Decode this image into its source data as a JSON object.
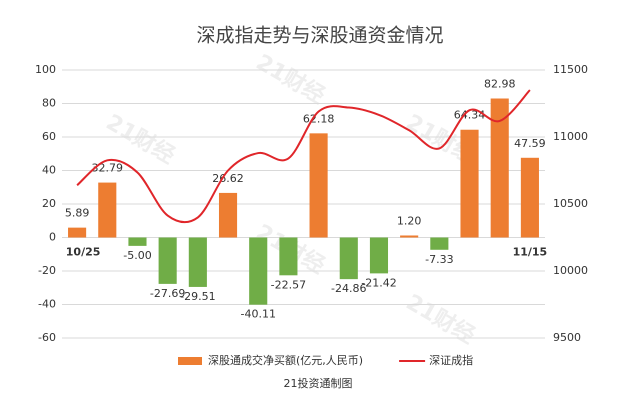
{
  "chart_data": {
    "type": "bar",
    "title": "深成指走势与深股通资金情况",
    "footer": "21投资通制图",
    "watermark": "21财经",
    "categories": [
      "10/25",
      null,
      null,
      null,
      null,
      null,
      null,
      null,
      null,
      null,
      null,
      null,
      null,
      null,
      null,
      "11/15"
    ],
    "series": [
      {
        "name": "深股通成交净买额(亿元,人民币)",
        "type": "bar",
        "color": "#ed7d31",
        "negative_color": "#70ad47",
        "values": [
          5.89,
          32.79,
          -5.0,
          -27.69,
          -29.51,
          26.62,
          -40.11,
          -22.57,
          62.18,
          -24.86,
          -21.42,
          1.2,
          -7.33,
          64.34,
          82.98,
          47.59
        ],
        "value_labels": [
          "5.89",
          "32.79",
          "-5.00",
          "-27.69",
          "-29.51",
          "26.62",
          "-40.11",
          "-22.57",
          "62.18",
          "-24.86",
          "-21.42",
          "1.20",
          "-7.33",
          "64.34",
          "82.98",
          "47.59"
        ]
      },
      {
        "name": "深证成指",
        "type": "line",
        "axis": "y2",
        "color": "#e0262a",
        "values": [
          10640,
          10826,
          10735,
          10414,
          10400,
          10750,
          10880,
          10840,
          11190,
          11220,
          11165,
          11050,
          10915,
          11200,
          11120,
          11350
        ]
      }
    ],
    "ylim": [
      -60,
      100
    ],
    "yticks": [
      -60,
      -40,
      -20,
      0,
      20,
      40,
      60,
      80,
      100
    ],
    "y2lim": [
      9500,
      11500
    ],
    "y2ticks": [
      9500,
      10000,
      10500,
      11000,
      11500
    ],
    "grid": true
  }
}
